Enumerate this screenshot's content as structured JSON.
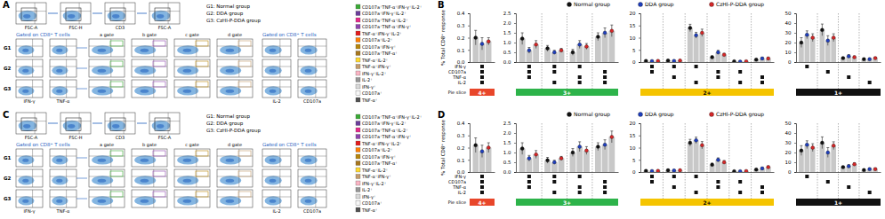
{
  "panel_labels": [
    "A",
    "B",
    "C",
    "D"
  ],
  "flow_panels": [
    {
      "gating_x_labels": [
        "FSC-A",
        "FSC-H",
        "CD3",
        "FSC-A"
      ],
      "group_legend": [
        "G1: Normal group",
        "G2: DDA group",
        "G3: CzHI-P-DDA group"
      ],
      "gated_title": "Gated on CD8⁺ T cells",
      "right_title": "Gated on CD8⁺ T cells",
      "row_labels": [
        "G1",
        "G2",
        "G3"
      ],
      "gate_labels": [
        "a gate",
        "b gate",
        "c gate",
        "d gate"
      ],
      "grid_x_labels": [
        "IFN-γ",
        "TNF-α"
      ],
      "right_x_labels": [
        "IL-2",
        "CD107a"
      ],
      "subset_legend": [
        {
          "label": "CD107a⁺TNF-α⁺IFN-γ⁺IL-2⁺",
          "color": "#3aaa35"
        },
        {
          "label": "CD107a⁺IFN-γ⁺IL-2⁺",
          "color": "#6a3d9a"
        },
        {
          "label": "CD107a⁺TNF-α⁺IL-2⁺",
          "color": "#e7298a"
        },
        {
          "label": "CD107a⁺TNF-α⁺IFN-γ⁺",
          "color": "#8e44ad"
        },
        {
          "label": "TNF-α⁺IFN-γ⁺IL-2⁺",
          "color": "#e31a1c"
        },
        {
          "label": "CD107a⁺IL-2⁺",
          "color": "#ff7f00"
        },
        {
          "label": "CD107a⁺IFN-γ⁺",
          "color": "#b8860b"
        },
        {
          "label": "CD107a⁺TNF-α⁺",
          "color": "#a6761d"
        },
        {
          "label": "TNF-α⁺IL-2⁺",
          "color": "#ffd92f"
        },
        {
          "label": "TNF-α⁺IFN-γ⁺",
          "color": "#c49c6b"
        },
        {
          "label": "IFN-γ⁺IL-2⁺",
          "color": "#fbb4c4"
        },
        {
          "label": "IL-2⁺",
          "color": "#969696"
        },
        {
          "label": "IFN-γ⁺",
          "color": "#d9d9d9"
        },
        {
          "label": "CD107a⁺",
          "color": "#f7f7f7"
        },
        {
          "label": "TNF-α⁺",
          "color": "#525252"
        }
      ]
    },
    {
      "gating_x_labels": [
        "FSC-A",
        "FSC-H",
        "CD3",
        "FSC-A"
      ],
      "group_legend": [
        "G1: Normal group",
        "G2: DDA group",
        "G3: CzHI-P-DDA group"
      ],
      "gated_title": "Gated on CD8⁺ T cells",
      "right_title": "Gated on CD8⁺ T cells",
      "row_labels": [
        "G1",
        "G2",
        "G3"
      ],
      "gate_labels": [
        "a gate",
        "b gate",
        "c gate",
        "d gate"
      ],
      "grid_x_labels": [
        "IFN-γ",
        "TNF-α"
      ],
      "right_x_labels": [
        "IL-2",
        "CD107a"
      ],
      "subset_legend": [
        {
          "label": "CD107a⁺TNF-α⁺IFN-γ⁺IL-2⁺",
          "color": "#3aaa35"
        },
        {
          "label": "CD107a⁺IFN-γ⁺IL-2⁺",
          "color": "#6a3d9a"
        },
        {
          "label": "CD107a⁺TNF-α⁺IL-2⁺",
          "color": "#e7298a"
        },
        {
          "label": "CD107a⁺TNF-α⁺IFN-γ⁺",
          "color": "#8e44ad"
        },
        {
          "label": "TNF-α⁺IFN-γ⁺IL-2⁺",
          "color": "#e31a1c"
        },
        {
          "label": "CD107a⁺IL-2⁺",
          "color": "#ff7f00"
        },
        {
          "label": "CD107a⁺IFN-γ⁺",
          "color": "#b8860b"
        },
        {
          "label": "CD107a⁺TNF-α⁺",
          "color": "#a6761d"
        },
        {
          "label": "TNF-α⁺IL-2⁺",
          "color": "#ffd92f"
        },
        {
          "label": "TNF-α⁺IFN-γ⁺",
          "color": "#c49c6b"
        },
        {
          "label": "IFN-γ⁺IL-2⁺",
          "color": "#fbb4c4"
        },
        {
          "label": "IL-2⁺",
          "color": "#969696"
        },
        {
          "label": "IFN-γ⁺",
          "color": "#d9d9d9"
        },
        {
          "label": "CD107a⁺",
          "color": "#f7f7f7"
        },
        {
          "label": "TNF-α⁺",
          "color": "#525252"
        }
      ]
    }
  ],
  "chart_data": [
    {
      "type": "bar",
      "legend": "top",
      "y_label": "% Total CD8⁺ response",
      "color": "#c8c8c8",
      "row_labels": [
        "IFN-γ",
        "CD107a",
        "TNF-α",
        "IL-2",
        "Pie slice"
      ],
      "ylim": [
        0,
        0.4
      ],
      "yticks": [
        {
          "value": 0,
          "label": "0.0"
        },
        0.1,
        0.2,
        0.3,
        0.4
      ],
      "categories": [
        null
      ],
      "combinations": [
        [
          true,
          true,
          true,
          true
        ]
      ],
      "pie_slice": {
        "label": "4+",
        "color": "#e8462a"
      },
      "series": [
        {
          "name": "Normal group",
          "color": "#111111",
          "values": [
            0.2
          ],
          "errors": [
            0.06
          ]
        },
        {
          "name": "DDA group",
          "color": "#1f3fbf",
          "values": [
            0.15
          ],
          "errors": [
            0.05
          ]
        },
        {
          "name": "CzHI-P-DDA group",
          "color": "#d62728",
          "values": [
            0.17
          ],
          "errors": [
            0.03
          ]
        }
      ]
    },
    {
      "type": "bar",
      "color": "#c8c8c8",
      "ylim": [
        0,
        2.5
      ],
      "yticks": [
        {
          "value": 0,
          "label": "0.0"
        },
        0.5,
        {
          "value": 1,
          "label": "1.0"
        },
        1.5,
        {
          "value": 2,
          "label": "2.0"
        },
        2.5
      ],
      "categories": [
        null,
        null,
        null,
        null
      ],
      "combinations": [
        [
          true,
          true,
          true,
          false
        ],
        [
          true,
          true,
          false,
          true
        ],
        [
          true,
          false,
          true,
          true
        ],
        [
          false,
          true,
          true,
          true
        ]
      ],
      "pie_slice": {
        "label": "3+",
        "color": "#2db34a"
      },
      "series": [
        {
          "color": "#111111",
          "values": [
            1.2,
            0.7,
            0.5,
            1.3
          ],
          "errors": [
            0.3,
            0.15,
            0.15,
            0.2
          ]
        },
        {
          "color": "#1f3fbf",
          "values": [
            0.6,
            0.5,
            0.9,
            1.5
          ],
          "errors": [
            0.15,
            0.1,
            0.2,
            0.25
          ]
        },
        {
          "color": "#d62728",
          "values": [
            0.9,
            0.6,
            0.8,
            1.6
          ],
          "errors": [
            0.2,
            0.1,
            0.15,
            0.3
          ]
        }
      ]
    },
    {
      "type": "bar",
      "color": "#c8c8c8",
      "ylim": [
        0,
        20
      ],
      "yticks": [
        0,
        5,
        10,
        15,
        20
      ],
      "categories": [
        null,
        null,
        null,
        null,
        null,
        null
      ],
      "combinations": [
        [
          true,
          true,
          false,
          false
        ],
        [
          true,
          false,
          true,
          false
        ],
        [
          true,
          false,
          false,
          true
        ],
        [
          false,
          true,
          true,
          false
        ],
        [
          false,
          true,
          false,
          true
        ],
        [
          false,
          false,
          true,
          true
        ]
      ],
      "pie_slice": {
        "label": "2+",
        "color": "#f5c400"
      },
      "series": [
        {
          "color": "#111111",
          "values": [
            0.5,
            0.6,
            14,
            2,
            0.3,
            1
          ],
          "errors": [
            0.2,
            0.2,
            1.5,
            0.5,
            0.1,
            0.3
          ]
        },
        {
          "color": "#1f3fbf",
          "values": [
            0.4,
            0.5,
            11,
            4,
            0.2,
            1.5
          ],
          "errors": [
            0.1,
            0.2,
            1.2,
            0.8,
            0.1,
            0.4
          ]
        },
        {
          "color": "#d62728",
          "values": [
            0.5,
            0.6,
            12,
            3,
            0.3,
            1.5
          ],
          "errors": [
            0.2,
            0.2,
            1.5,
            0.6,
            0.1,
            0.4
          ]
        }
      ]
    },
    {
      "type": "bar",
      "color": "#c8c8c8",
      "ylim": [
        0,
        50
      ],
      "yticks": [
        0,
        10,
        20,
        30,
        40,
        50
      ],
      "categories": [
        null,
        null,
        null,
        null
      ],
      "combinations": [
        [
          true,
          false,
          false,
          false
        ],
        [
          false,
          true,
          false,
          false
        ],
        [
          false,
          false,
          true,
          false
        ],
        [
          false,
          false,
          false,
          true
        ]
      ],
      "pie_slice": {
        "label": "1+",
        "color": "#111111"
      },
      "series": [
        {
          "color": "#111111",
          "values": [
            20,
            33,
            4,
            3
          ],
          "errors": [
            5,
            6,
            1,
            1
          ]
        },
        {
          "color": "#1f3fbf",
          "values": [
            28,
            22,
            6,
            3
          ],
          "errors": [
            4,
            5,
            1.5,
            0.8
          ]
        },
        {
          "color": "#d62728",
          "values": [
            25,
            25,
            5,
            4
          ],
          "errors": [
            4,
            4,
            1.2,
            1
          ]
        }
      ]
    },
    {
      "type": "bar",
      "legend": "top",
      "y_label": "% Total CD8⁺ response",
      "color": "#c8c8c8",
      "row_labels": [
        "IFN-γ",
        "CD107a",
        "TNF-α",
        "IL-2",
        "Pie slice"
      ],
      "ylim": [
        0,
        0.4
      ],
      "yticks": [
        {
          "value": 0,
          "label": "0.0"
        },
        0.1,
        0.2,
        0.3,
        0.4
      ],
      "categories": [
        null
      ],
      "combinations": [
        [
          true,
          true,
          true,
          true
        ]
      ],
      "pie_slice": {
        "label": "4+",
        "color": "#e8462a"
      },
      "series": [
        {
          "name": "Normal group",
          "color": "#111111",
          "values": [
            0.22
          ],
          "errors": [
            0.06
          ]
        },
        {
          "name": "DDA group",
          "color": "#1f3fbf",
          "values": [
            0.17
          ],
          "errors": [
            0.05
          ]
        },
        {
          "name": "CzHI-P-DDA group",
          "color": "#d62728",
          "values": [
            0.2
          ],
          "errors": [
            0.04
          ]
        }
      ]
    },
    {
      "type": "bar",
      "color": "#c8c8c8",
      "ylim": [
        0,
        2.5
      ],
      "yticks": [
        {
          "value": 0,
          "label": "0.0"
        },
        0.5,
        {
          "value": 1,
          "label": "1.0"
        },
        1.5,
        {
          "value": 2,
          "label": "2.0"
        },
        2.5
      ],
      "categories": [
        null,
        null,
        null,
        null
      ],
      "combinations": [
        [
          true,
          true,
          true,
          false
        ],
        [
          true,
          true,
          false,
          true
        ],
        [
          true,
          false,
          true,
          true
        ],
        [
          false,
          true,
          true,
          true
        ]
      ],
      "pie_slice": {
        "label": "3+",
        "color": "#2db34a"
      },
      "series": [
        {
          "color": "#111111",
          "values": [
            1.2,
            0.6,
            1.0,
            1.3
          ],
          "errors": [
            0.3,
            0.15,
            0.2,
            0.2
          ]
        },
        {
          "color": "#1f3fbf",
          "values": [
            0.7,
            0.5,
            1.3,
            1.4
          ],
          "errors": [
            0.15,
            0.1,
            0.25,
            0.25
          ]
        },
        {
          "color": "#d62728",
          "values": [
            0.9,
            0.7,
            1.1,
            1.8
          ],
          "errors": [
            0.2,
            0.1,
            0.2,
            0.3
          ]
        }
      ]
    },
    {
      "type": "bar",
      "color": "#c8c8c8",
      "ylim": [
        0,
        20
      ],
      "yticks": [
        0,
        5,
        10,
        15,
        20
      ],
      "categories": [
        null,
        null,
        null,
        null,
        null,
        null
      ],
      "combinations": [
        [
          true,
          true,
          false,
          false
        ],
        [
          true,
          false,
          true,
          false
        ],
        [
          true,
          false,
          false,
          true
        ],
        [
          false,
          true,
          true,
          false
        ],
        [
          false,
          true,
          false,
          true
        ],
        [
          false,
          false,
          true,
          true
        ]
      ],
      "pie_slice": {
        "label": "2+",
        "color": "#f5c400"
      },
      "series": [
        {
          "color": "#111111",
          "values": [
            0.5,
            0.7,
            12,
            3,
            0.3,
            1
          ],
          "errors": [
            0.2,
            0.2,
            1.4,
            0.6,
            0.1,
            0.3
          ]
        },
        {
          "color": "#1f3fbf",
          "values": [
            0.4,
            0.6,
            13,
            5,
            0.3,
            1.5
          ],
          "errors": [
            0.1,
            0.2,
            1.3,
            0.8,
            0.1,
            0.4
          ]
        },
        {
          "color": "#d62728",
          "values": [
            0.5,
            0.7,
            11,
            4,
            0.4,
            2
          ],
          "errors": [
            0.2,
            0.2,
            1.5,
            0.7,
            0.1,
            0.5
          ]
        }
      ]
    },
    {
      "type": "bar",
      "color": "#c8c8c8",
      "ylim": [
        0,
        50
      ],
      "yticks": [
        0,
        10,
        20,
        30,
        40,
        50
      ],
      "categories": [
        null,
        null,
        null,
        null
      ],
      "combinations": [
        [
          true,
          false,
          false,
          false
        ],
        [
          false,
          true,
          false,
          false
        ],
        [
          false,
          false,
          true,
          false
        ],
        [
          false,
          false,
          false,
          true
        ]
      ],
      "pie_slice": {
        "label": "1+",
        "color": "#111111"
      },
      "series": [
        {
          "color": "#111111",
          "values": [
            22,
            30,
            5,
            2
          ],
          "errors": [
            5,
            6,
            1,
            0.8
          ]
        },
        {
          "color": "#1f3fbf",
          "values": [
            28,
            20,
            6,
            3
          ],
          "errors": [
            4,
            5,
            1.5,
            1
          ]
        },
        {
          "color": "#d62728",
          "values": [
            25,
            27,
            8,
            3
          ],
          "errors": [
            4,
            4,
            1.5,
            1
          ]
        }
      ]
    }
  ]
}
